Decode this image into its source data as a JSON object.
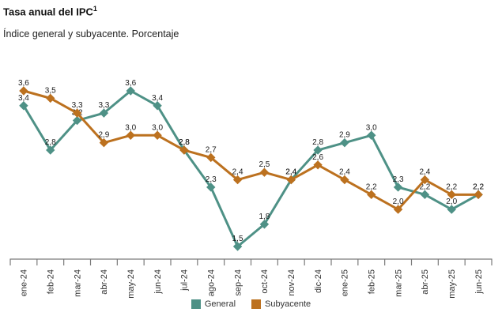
{
  "chart_data": {
    "type": "line",
    "title": "Tasa anual del IPC",
    "title_footnote_marker": "1",
    "subtitle": "Índice general y subyacente. Porcentaje",
    "categories": [
      "ene-24",
      "feb-24",
      "mar-24",
      "abr-24",
      "may-24",
      "jun-24",
      "jul-24",
      "ago-24",
      "sep-24",
      "oct-24",
      "nov-24",
      "dic-24",
      "ene-25",
      "feb-25",
      "mar-25",
      "abr-25",
      "may-25",
      "jun-25"
    ],
    "series": [
      {
        "name": "General",
        "color": "#4E9186",
        "values": [
          3.4,
          2.8,
          3.2,
          3.3,
          3.6,
          3.4,
          2.8,
          2.3,
          1.5,
          1.8,
          2.4,
          2.8,
          2.9,
          3.0,
          2.3,
          2.2,
          2.0,
          2.2
        ]
      },
      {
        "name": "Subyacente",
        "color": "#BC711F",
        "values": [
          3.6,
          3.5,
          3.3,
          2.9,
          3.0,
          3.0,
          2.8,
          2.7,
          2.4,
          2.5,
          2.4,
          2.6,
          2.4,
          2.2,
          2.0,
          2.4,
          2.2,
          2.2
        ]
      }
    ],
    "value_range": [
      1.5,
      3.6
    ],
    "ylim": [
      1.3,
      3.8
    ],
    "grid": false,
    "xlabel": "",
    "ylabel": "",
    "legend_position": "bottom",
    "decimal_separator": ",",
    "marker_shape": "diamond",
    "data_labels": true,
    "axis_color": "#7A7A7A",
    "data_label_color": "#1A1A1A",
    "tick_label_color": "#333333"
  }
}
